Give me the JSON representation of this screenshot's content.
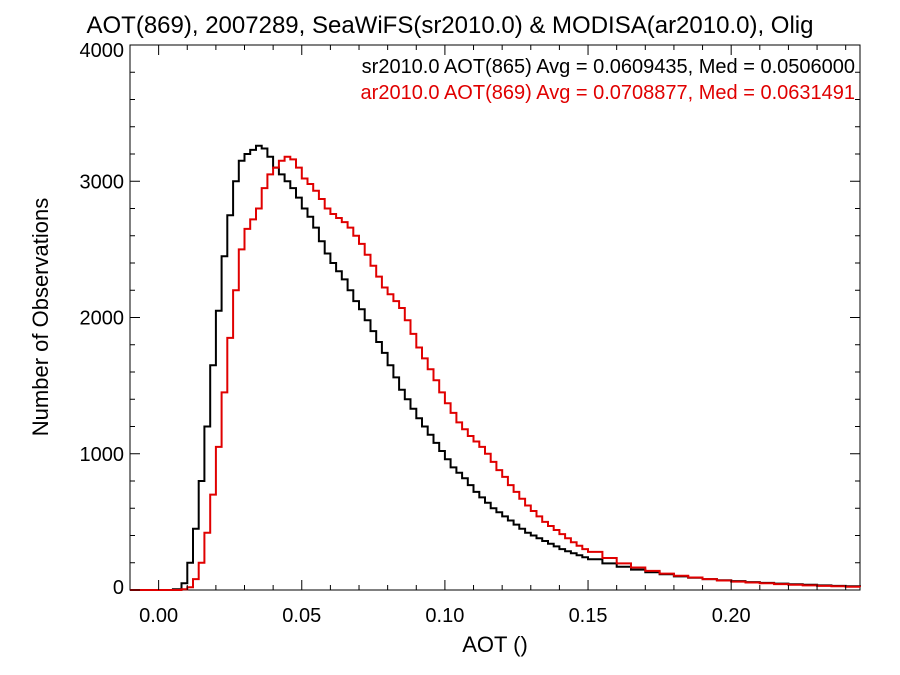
{
  "chart_data": {
    "type": "line",
    "title": "AOT(869), 2007289, SeaWiFS(sr2010.0) & MODISA(ar2010.0), Olig",
    "xlabel": "AOT ()",
    "ylabel": "Number of Observations",
    "xlim": [
      -0.01,
      0.245
    ],
    "ylim": [
      0,
      4000
    ],
    "xticks": [
      0.0,
      0.05,
      0.1,
      0.15,
      0.2
    ],
    "xtick_labels": [
      "0.00",
      "0.05",
      "0.10",
      "0.15",
      "0.20"
    ],
    "yticks": [
      0,
      1000,
      2000,
      3000,
      4000
    ],
    "ytick_labels": [
      "0",
      "1000",
      "2000",
      "3000",
      "4000"
    ],
    "legend_placement": "top-right",
    "series": [
      {
        "name": "sr2010.0 AOT(865) Avg = 0.0609435, Med = 0.0506000",
        "color": "#000000",
        "style": "step",
        "points": [
          [
            -0.01,
            0
          ],
          [
            0.005,
            5
          ],
          [
            0.008,
            50
          ],
          [
            0.01,
            200
          ],
          [
            0.012,
            450
          ],
          [
            0.014,
            800
          ],
          [
            0.016,
            1200
          ],
          [
            0.018,
            1650
          ],
          [
            0.02,
            2050
          ],
          [
            0.022,
            2450
          ],
          [
            0.024,
            2750
          ],
          [
            0.026,
            3000
          ],
          [
            0.028,
            3150
          ],
          [
            0.03,
            3200
          ],
          [
            0.032,
            3230
          ],
          [
            0.034,
            3260
          ],
          [
            0.036,
            3240
          ],
          [
            0.038,
            3180
          ],
          [
            0.04,
            3100
          ],
          [
            0.042,
            3050
          ],
          [
            0.044,
            3000
          ],
          [
            0.046,
            2950
          ],
          [
            0.048,
            2880
          ],
          [
            0.05,
            2800
          ],
          [
            0.052,
            2740
          ],
          [
            0.054,
            2660
          ],
          [
            0.056,
            2560
          ],
          [
            0.058,
            2470
          ],
          [
            0.06,
            2400
          ],
          [
            0.062,
            2340
          ],
          [
            0.064,
            2280
          ],
          [
            0.066,
            2200
          ],
          [
            0.068,
            2120
          ],
          [
            0.07,
            2060
          ],
          [
            0.072,
            1980
          ],
          [
            0.074,
            1900
          ],
          [
            0.076,
            1820
          ],
          [
            0.078,
            1740
          ],
          [
            0.08,
            1650
          ],
          [
            0.082,
            1560
          ],
          [
            0.084,
            1470
          ],
          [
            0.086,
            1400
          ],
          [
            0.088,
            1330
          ],
          [
            0.09,
            1260
          ],
          [
            0.092,
            1200
          ],
          [
            0.094,
            1140
          ],
          [
            0.096,
            1080
          ],
          [
            0.098,
            1020
          ],
          [
            0.1,
            960
          ],
          [
            0.102,
            900
          ],
          [
            0.104,
            860
          ],
          [
            0.106,
            820
          ],
          [
            0.108,
            770
          ],
          [
            0.11,
            720
          ],
          [
            0.112,
            680
          ],
          [
            0.114,
            640
          ],
          [
            0.116,
            600
          ],
          [
            0.118,
            570
          ],
          [
            0.12,
            540
          ],
          [
            0.122,
            510
          ],
          [
            0.124,
            480
          ],
          [
            0.126,
            450
          ],
          [
            0.128,
            420
          ],
          [
            0.13,
            400
          ],
          [
            0.132,
            380
          ],
          [
            0.134,
            360
          ],
          [
            0.136,
            340
          ],
          [
            0.138,
            320
          ],
          [
            0.14,
            300
          ],
          [
            0.142,
            285
          ],
          [
            0.144,
            270
          ],
          [
            0.146,
            255
          ],
          [
            0.148,
            240
          ],
          [
            0.15,
            225
          ],
          [
            0.155,
            195
          ],
          [
            0.16,
            170
          ],
          [
            0.165,
            150
          ],
          [
            0.17,
            130
          ],
          [
            0.175,
            115
          ],
          [
            0.18,
            100
          ],
          [
            0.185,
            90
          ],
          [
            0.19,
            80
          ],
          [
            0.195,
            72
          ],
          [
            0.2,
            65
          ],
          [
            0.205,
            58
          ],
          [
            0.21,
            52
          ],
          [
            0.215,
            47
          ],
          [
            0.22,
            42
          ],
          [
            0.225,
            38
          ],
          [
            0.23,
            34
          ],
          [
            0.235,
            30
          ],
          [
            0.24,
            27
          ],
          [
            0.245,
            25
          ]
        ]
      },
      {
        "name": "ar2010.0 AOT(869) Avg = 0.0708877, Med = 0.0631491",
        "color": "#e00000",
        "style": "step",
        "points": [
          [
            -0.01,
            0
          ],
          [
            0.008,
            5
          ],
          [
            0.01,
            20
          ],
          [
            0.012,
            80
          ],
          [
            0.014,
            200
          ],
          [
            0.016,
            420
          ],
          [
            0.018,
            700
          ],
          [
            0.02,
            1050
          ],
          [
            0.022,
            1450
          ],
          [
            0.024,
            1850
          ],
          [
            0.026,
            2200
          ],
          [
            0.028,
            2500
          ],
          [
            0.03,
            2650
          ],
          [
            0.032,
            2720
          ],
          [
            0.034,
            2800
          ],
          [
            0.036,
            2950
          ],
          [
            0.038,
            3050
          ],
          [
            0.04,
            3100
          ],
          [
            0.042,
            3150
          ],
          [
            0.044,
            3180
          ],
          [
            0.046,
            3160
          ],
          [
            0.048,
            3100
          ],
          [
            0.05,
            3020
          ],
          [
            0.052,
            2980
          ],
          [
            0.054,
            2930
          ],
          [
            0.056,
            2870
          ],
          [
            0.058,
            2800
          ],
          [
            0.06,
            2760
          ],
          [
            0.062,
            2730
          ],
          [
            0.064,
            2700
          ],
          [
            0.066,
            2660
          ],
          [
            0.068,
            2600
          ],
          [
            0.07,
            2540
          ],
          [
            0.072,
            2460
          ],
          [
            0.074,
            2380
          ],
          [
            0.076,
            2300
          ],
          [
            0.078,
            2220
          ],
          [
            0.08,
            2170
          ],
          [
            0.082,
            2120
          ],
          [
            0.084,
            2070
          ],
          [
            0.086,
            1980
          ],
          [
            0.088,
            1880
          ],
          [
            0.09,
            1780
          ],
          [
            0.092,
            1700
          ],
          [
            0.094,
            1620
          ],
          [
            0.096,
            1540
          ],
          [
            0.098,
            1450
          ],
          [
            0.1,
            1370
          ],
          [
            0.102,
            1300
          ],
          [
            0.104,
            1230
          ],
          [
            0.106,
            1180
          ],
          [
            0.108,
            1130
          ],
          [
            0.11,
            1090
          ],
          [
            0.112,
            1050
          ],
          [
            0.114,
            1000
          ],
          [
            0.116,
            940
          ],
          [
            0.118,
            880
          ],
          [
            0.12,
            830
          ],
          [
            0.122,
            770
          ],
          [
            0.124,
            720
          ],
          [
            0.126,
            670
          ],
          [
            0.128,
            620
          ],
          [
            0.13,
            580
          ],
          [
            0.132,
            540
          ],
          [
            0.134,
            500
          ],
          [
            0.136,
            470
          ],
          [
            0.138,
            440
          ],
          [
            0.14,
            410
          ],
          [
            0.142,
            380
          ],
          [
            0.144,
            350
          ],
          [
            0.146,
            325
          ],
          [
            0.148,
            300
          ],
          [
            0.15,
            280
          ],
          [
            0.155,
            235
          ],
          [
            0.16,
            195
          ],
          [
            0.165,
            165
          ],
          [
            0.17,
            140
          ],
          [
            0.175,
            120
          ],
          [
            0.18,
            105
          ],
          [
            0.185,
            92
          ],
          [
            0.19,
            80
          ],
          [
            0.195,
            70
          ],
          [
            0.2,
            62
          ],
          [
            0.205,
            55
          ],
          [
            0.21,
            49
          ],
          [
            0.215,
            43
          ],
          [
            0.22,
            38
          ],
          [
            0.225,
            34
          ],
          [
            0.23,
            30
          ],
          [
            0.235,
            27
          ],
          [
            0.24,
            24
          ],
          [
            0.245,
            22
          ]
        ]
      }
    ]
  }
}
